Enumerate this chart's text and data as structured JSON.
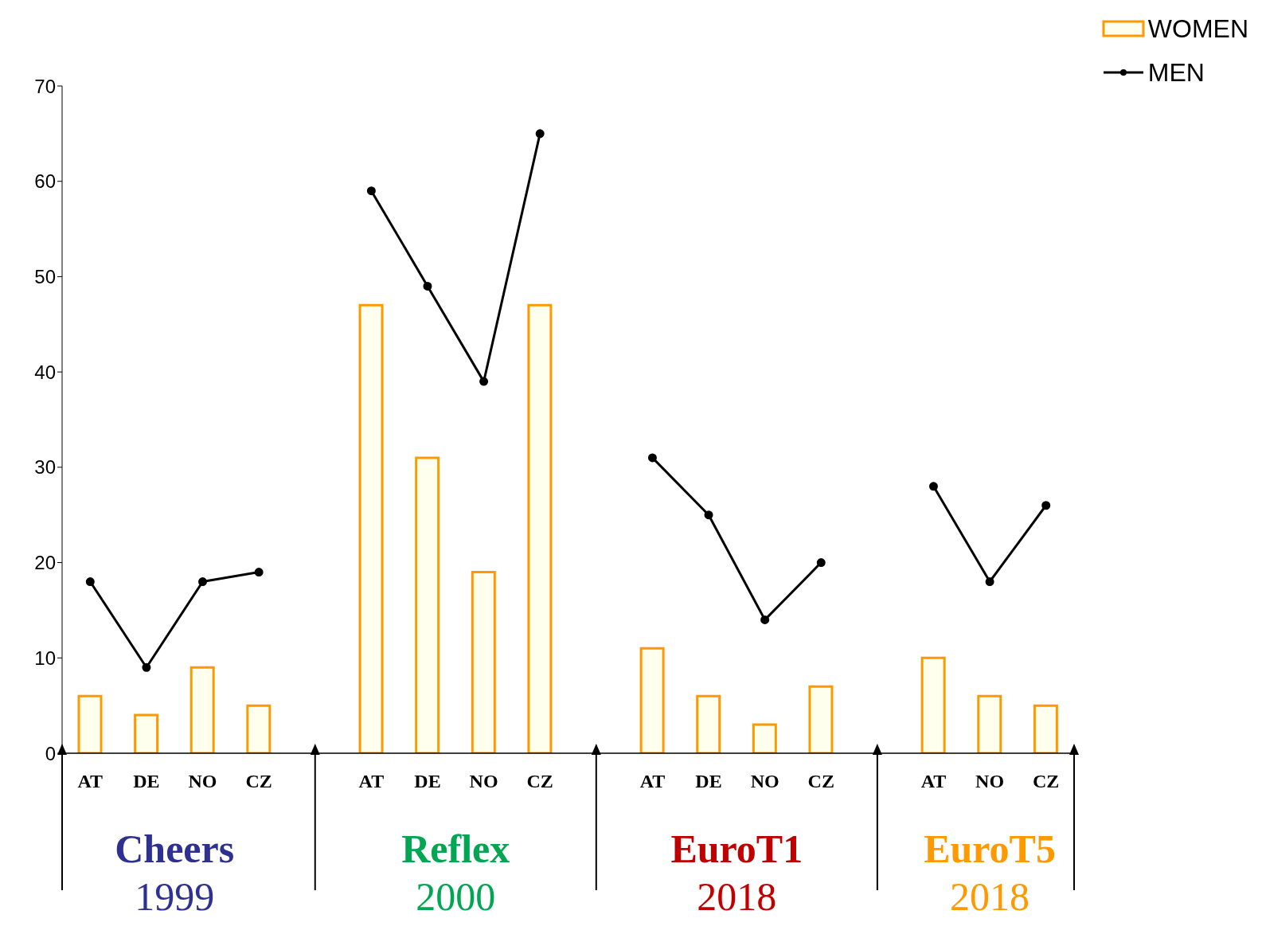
{
  "chart_data": {
    "type": "bar",
    "categories": [
      "AT",
      "DE",
      "NO",
      "CZ",
      null,
      "AT",
      "DE",
      "NO",
      "CZ",
      null,
      "AT",
      "DE",
      "NO",
      "CZ",
      null,
      "AT",
      "NO",
      "CZ"
    ],
    "series": [
      {
        "name": "WOMEN",
        "color": "#ff9900",
        "values": [
          6,
          4,
          9,
          5,
          null,
          47,
          31,
          19,
          47,
          null,
          11,
          6,
          3,
          7,
          null,
          10,
          6,
          5
        ]
      },
      {
        "name": "MEN",
        "type": "line",
        "color": "#000000",
        "marker": "circle",
        "values": [
          18,
          9,
          18,
          19,
          null,
          59,
          49,
          39,
          65,
          null,
          31,
          25,
          14,
          20,
          null,
          28,
          18,
          26
        ]
      }
    ],
    "ylim": [
      0,
      70
    ],
    "yticks": [
      0,
      10,
      20,
      30,
      40,
      50,
      60,
      70
    ],
    "grid": false,
    "legend": "top right",
    "annotations": [
      "Cheers",
      "1999",
      "Reflex",
      "2000",
      "EuroT1",
      "2018",
      "EuroT5",
      "2018"
    ]
  }
}
